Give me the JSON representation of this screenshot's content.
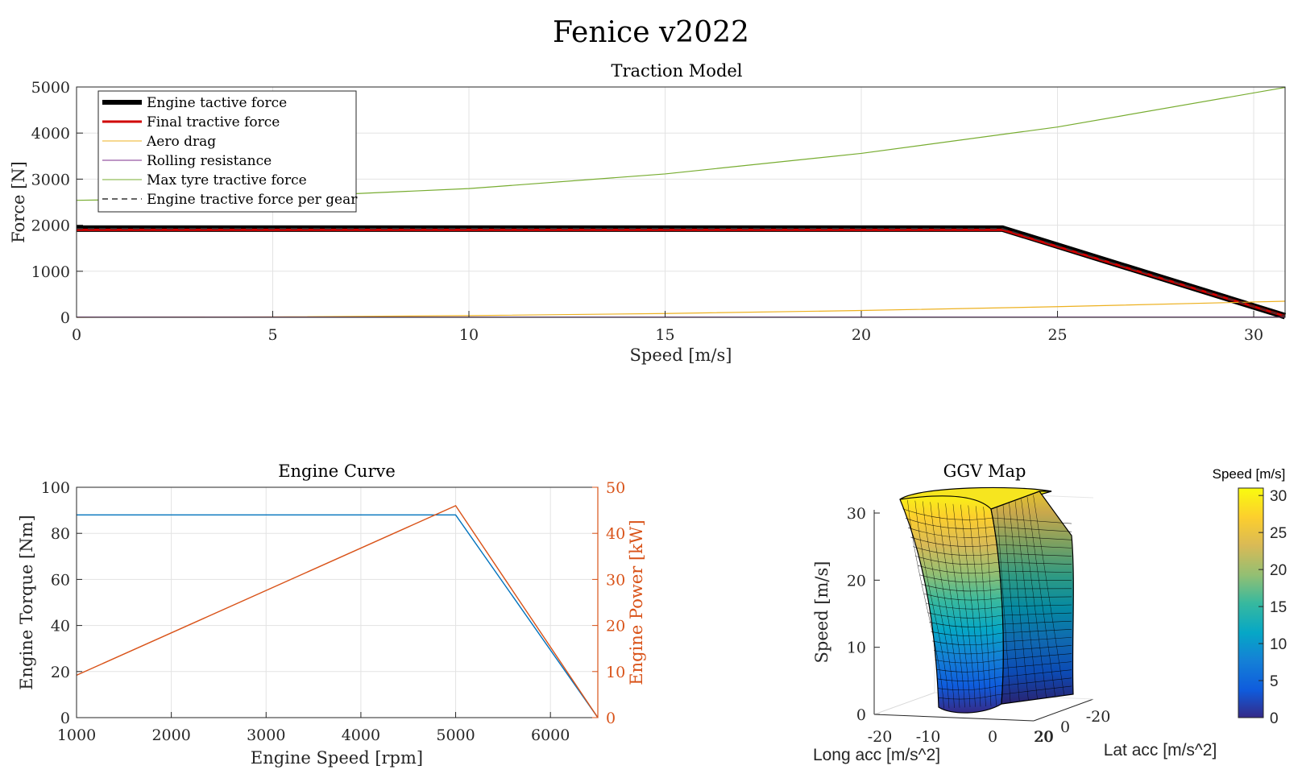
{
  "figure": {
    "title": "Fenice v2022"
  },
  "chart_data": [
    {
      "type": "line",
      "title": "Traction Model",
      "xlabel": "Speed [m/s]",
      "ylabel": "Force [N]",
      "xlim": [
        0,
        30.8
      ],
      "ylim": [
        0,
        5000
      ],
      "xticks": [
        0,
        5,
        10,
        15,
        20,
        25,
        30
      ],
      "yticks": [
        0,
        1000,
        2000,
        3000,
        4000,
        5000
      ],
      "grid": true,
      "legend_position": "top-left",
      "series": [
        {
          "name": "Engine tactive force",
          "color": "#000000",
          "style": "solid-thick",
          "x": [
            0,
            23.6,
            30.8
          ],
          "y": [
            1925,
            1925,
            25
          ]
        },
        {
          "name": "Final tractive force",
          "color": "#d00000",
          "style": "solid",
          "x": [
            0,
            23.6,
            30.8
          ],
          "y": [
            1900,
            1900,
            25
          ]
        },
        {
          "name": "Aero drag",
          "color": "#EDB120",
          "style": "thin",
          "x": [
            0,
            5,
            10,
            15,
            20,
            25,
            30.8
          ],
          "y": [
            0,
            9,
            37,
            83,
            148,
            231,
            350
          ]
        },
        {
          "name": "Rolling resistance",
          "color": "#7E2F8E",
          "style": "thin",
          "x": [
            0,
            30.8
          ],
          "y": [
            4,
            4
          ]
        },
        {
          "name": "Max tyre tractive force",
          "color": "#77AC30",
          "style": "thin",
          "x": [
            0,
            5,
            10,
            15,
            20,
            25,
            30.8
          ],
          "y": [
            2540,
            2604,
            2795,
            3113,
            3559,
            4131,
            4990
          ]
        },
        {
          "name": "Engine tractive force per gear",
          "color": "#333333",
          "style": "dashed",
          "x": [
            0,
            23.6,
            30.8
          ],
          "y": [
            1925,
            1925,
            25
          ]
        }
      ]
    },
    {
      "type": "line",
      "title": "Engine Curve",
      "xlabel": "Engine Speed [rpm]",
      "ylabel": "Engine Torque [Nm]",
      "y2label": "Engine Power [kW]",
      "xlim": [
        1000,
        6500
      ],
      "ylim": [
        0,
        100
      ],
      "y2lim": [
        0,
        50
      ],
      "xticks": [
        1000,
        2000,
        3000,
        4000,
        5000,
        6000
      ],
      "yticks": [
        0,
        20,
        40,
        60,
        80,
        100
      ],
      "y2ticks": [
        0,
        10,
        20,
        30,
        40,
        50
      ],
      "grid": true,
      "series": [
        {
          "name": "Engine Torque",
          "axis": "left",
          "color": "#0072BD",
          "x": [
            1000,
            5000,
            6500
          ],
          "y": [
            88,
            88,
            0
          ]
        },
        {
          "name": "Engine Power",
          "axis": "right",
          "color": "#D95319",
          "x": [
            1000,
            5000,
            6500
          ],
          "y": [
            9.2,
            46,
            0
          ]
        }
      ]
    },
    {
      "type": "surface",
      "title": "GGV Map",
      "xlabel": "Long acc [m/s^2]",
      "ylabel": "Lat acc [m/s^2]",
      "zlabel": "Speed [m/s]",
      "colorbar_label": "Speed [m/s]",
      "colormap": "parula",
      "xticks": [
        -20,
        -10,
        0,
        20
      ],
      "yticks": [
        20,
        0,
        -20
      ],
      "zticks": [
        0,
        10,
        20,
        30
      ],
      "clim": [
        0,
        31
      ],
      "colorbar_ticks": [
        0,
        5,
        10,
        15,
        20,
        25,
        30
      ]
    }
  ]
}
